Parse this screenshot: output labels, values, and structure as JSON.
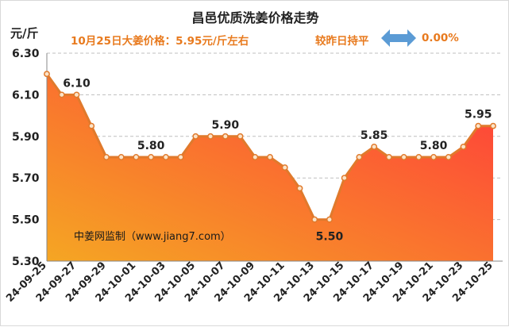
{
  "header": {
    "title": "昌邑优质洗姜价格走势",
    "unit": "元/斤",
    "price_info": "10月25日大姜价格：5.95元/斤左右",
    "change_label": "较昨日持平",
    "change_pct": "0.00%",
    "change_icon": "double-arrow-icon"
  },
  "watermark": "中姜网监制（www.jiang7.com）",
  "colors": {
    "line": "#e07a2c",
    "area_top": "#ff3b3b",
    "area_bottom": "#f5a623",
    "info_text": "#e87a1e",
    "arrow": "#5b9bd5"
  },
  "chart_data": {
    "type": "area",
    "title": "昌邑优质洗姜价格走势",
    "ylabel": "元/斤",
    "ylim": [
      5.3,
      6.3
    ],
    "yticks": [
      "5.30",
      "5.50",
      "5.70",
      "5.90",
      "6.10",
      "6.30"
    ],
    "grid": true,
    "x": [
      "24-09-25",
      "24-09-26",
      "24-09-27",
      "24-09-28",
      "24-09-29",
      "24-09-30",
      "24-10-01",
      "24-10-02",
      "24-10-03",
      "24-10-04",
      "24-10-05",
      "24-10-06",
      "24-10-07",
      "24-10-08",
      "24-10-09",
      "24-10-10",
      "24-10-11",
      "24-10-12",
      "24-10-13",
      "24-10-14",
      "24-10-15",
      "24-10-16",
      "24-10-17",
      "24-10-18",
      "24-10-19",
      "24-10-20",
      "24-10-21",
      "24-10-22",
      "24-10-23",
      "24-10-24",
      "24-10-25"
    ],
    "xtick_labels": [
      "24-09-25",
      "24-09-27",
      "24-09-29",
      "24-10-01",
      "24-10-03",
      "24-10-05",
      "24-10-07",
      "24-10-09",
      "24-10-11",
      "24-10-13",
      "24-10-15",
      "24-10-17",
      "24-10-19",
      "24-10-21",
      "24-10-23",
      "24-10-25"
    ],
    "series": [
      {
        "values": [
          6.2,
          6.1,
          6.1,
          5.95,
          5.8,
          5.8,
          5.8,
          5.8,
          5.8,
          5.8,
          5.9,
          5.9,
          5.9,
          5.9,
          5.8,
          5.8,
          5.75,
          5.65,
          5.5,
          5.5,
          5.7,
          5.8,
          5.85,
          5.8,
          5.8,
          5.8,
          5.8,
          5.8,
          5.85,
          5.95,
          5.95
        ]
      }
    ],
    "annotations": [
      {
        "index": 2,
        "text": "6.10"
      },
      {
        "index": 7,
        "text": "5.80"
      },
      {
        "index": 12,
        "text": "5.90"
      },
      {
        "index": 19,
        "text": "5.50"
      },
      {
        "index": 22,
        "text": "5.85"
      },
      {
        "index": 26,
        "text": "5.80"
      },
      {
        "index": 29,
        "text": "5.95"
      }
    ]
  }
}
